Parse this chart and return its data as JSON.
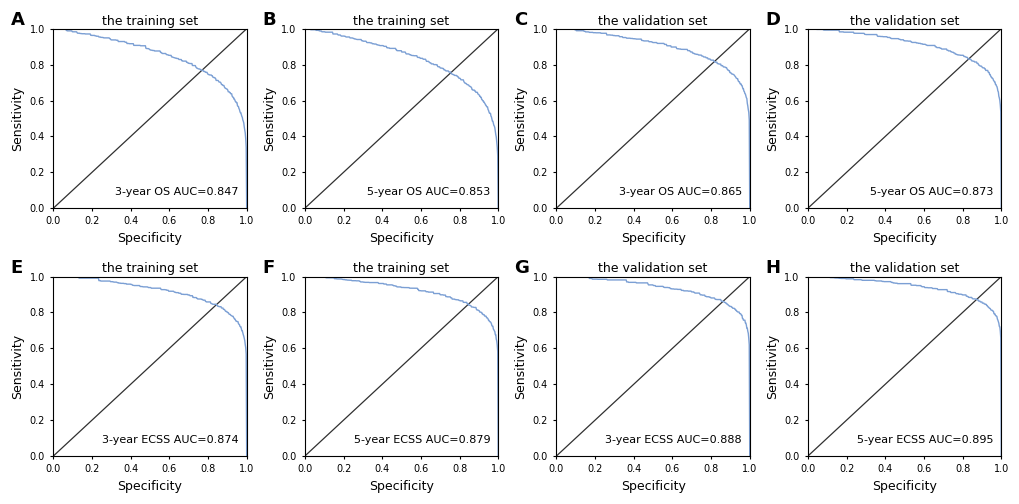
{
  "panels": [
    {
      "label": "A",
      "title": "the training set",
      "auc_text": "3-year OS AUC=0.847",
      "auc": 0.847,
      "steepness": 1.0
    },
    {
      "label": "B",
      "title": "the training set",
      "auc_text": "5-year OS AUC=0.853",
      "auc": 0.853,
      "steepness": 0.85
    },
    {
      "label": "C",
      "title": "the validation set",
      "auc_text": "3-year OS AUC=0.865",
      "auc": 0.865,
      "steepness": 1.3
    },
    {
      "label": "D",
      "title": "the validation set",
      "auc_text": "5-year OS AUC=0.873",
      "auc": 0.873,
      "steepness": 1.4
    },
    {
      "label": "E",
      "title": "the training set",
      "auc_text": "3-year ECSS AUC=0.874",
      "auc": 0.874,
      "steepness": 1.5
    },
    {
      "label": "F",
      "title": "the training set",
      "auc_text": "5-year ECSS AUC=0.879",
      "auc": 0.879,
      "steepness": 1.5
    },
    {
      "label": "G",
      "title": "the validation set",
      "auc_text": "3-year ECSS AUC=0.888",
      "auc": 0.888,
      "steepness": 1.6
    },
    {
      "label": "H",
      "title": "the validation set",
      "auc_text": "5-year ECSS AUC=0.895",
      "auc": 0.895,
      "steepness": 1.7
    }
  ],
  "roc_color": "#7B9FD4",
  "diag_color": "#303030",
  "bg_color": "#FFFFFF",
  "xticks": [
    0.0,
    0.2,
    0.4,
    0.6,
    0.8,
    1.0
  ],
  "yticks": [
    0.0,
    0.2,
    0.4,
    0.6,
    0.8,
    1.0
  ],
  "xlabel": "Specificity",
  "ylabel": "Sensitivity",
  "axis_label_fontsize": 9,
  "title_fontsize": 9,
  "tick_fontsize": 7,
  "annot_fontsize": 8,
  "panel_label_fontsize": 13
}
